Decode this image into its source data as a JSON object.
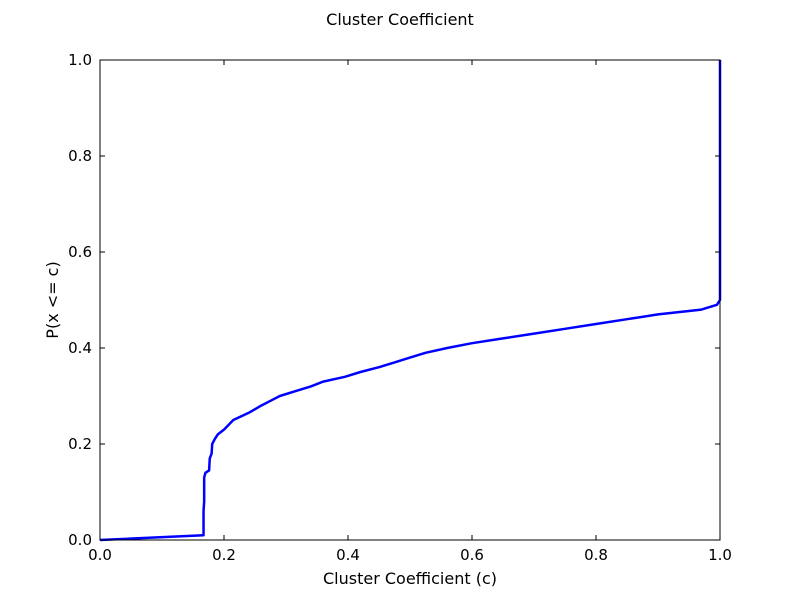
{
  "chart_data": {
    "type": "line",
    "title": "Cluster Coefficient",
    "xlabel": "Cluster Coefficient (c)",
    "ylabel": "P(x <= c)",
    "xlim": [
      0.0,
      1.0
    ],
    "ylim": [
      0.0,
      1.0
    ],
    "xticks": [
      "0.0",
      "0.2",
      "0.4",
      "0.6",
      "0.8",
      "1.0"
    ],
    "yticks": [
      "0.0",
      "0.2",
      "0.4",
      "0.6",
      "0.8",
      "1.0"
    ],
    "grid": false,
    "legend": false,
    "series": [
      {
        "color": "#0000ff",
        "x": [
          0.0,
          0.167,
          0.167,
          0.168,
          0.168,
          0.17,
          0.176,
          0.177,
          0.18,
          0.181,
          0.185,
          0.19,
          0.2,
          0.215,
          0.24,
          0.26,
          0.275,
          0.29,
          0.315,
          0.34,
          0.36,
          0.395,
          0.42,
          0.45,
          0.475,
          0.5,
          0.525,
          0.56,
          0.6,
          0.65,
          0.7,
          0.75,
          0.8,
          0.85,
          0.9,
          0.97,
          0.995,
          1.0,
          1.0
        ],
        "y": [
          0.0,
          0.01,
          0.06,
          0.08,
          0.13,
          0.14,
          0.145,
          0.17,
          0.18,
          0.2,
          0.21,
          0.22,
          0.23,
          0.25,
          0.265,
          0.28,
          0.29,
          0.3,
          0.31,
          0.32,
          0.33,
          0.34,
          0.35,
          0.36,
          0.37,
          0.38,
          0.39,
          0.4,
          0.41,
          0.42,
          0.43,
          0.44,
          0.45,
          0.46,
          0.47,
          0.48,
          0.49,
          0.5,
          1.0
        ]
      }
    ]
  }
}
